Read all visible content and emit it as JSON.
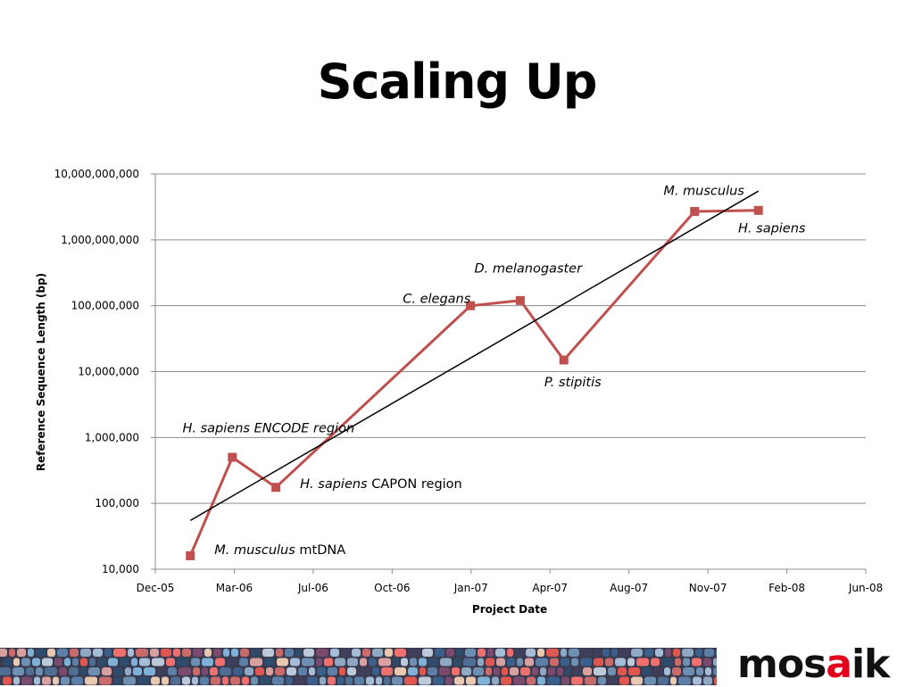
{
  "slide": {
    "title": "Scaling Up",
    "logo": {
      "prefix": "mos",
      "accent": "a",
      "suffix": "ik",
      "accent_color": "#e2001a"
    }
  },
  "chart_data": {
    "type": "line",
    "xlabel": "Project Date",
    "ylabel": "Reference Sequence Length (bp)",
    "yscale": "log",
    "ylim": [
      10000,
      10000000000
    ],
    "xlim": [
      "2005-12-01",
      "2008-06-01"
    ],
    "grid": true,
    "legend": "none",
    "y_ticks": [
      "10,000",
      "100,000",
      "1,000,000",
      "10,000,000",
      "100,000,000",
      "1,000,000,000",
      "10,000,000,000"
    ],
    "x_ticks": [
      "Dec-05",
      "Mar-06",
      "Jul-06",
      "Oct-06",
      "Jan-07",
      "Apr-07",
      "Aug-07",
      "Nov-07",
      "Feb-08",
      "Jun-08"
    ],
    "series": [
      {
        "color": "#c0504d",
        "marker": "square",
        "points": [
          {
            "x": "2006-01-15",
            "y": 16000
          },
          {
            "x": "2006-03-10",
            "y": 500000
          },
          {
            "x": "2006-05-05",
            "y": 175000
          },
          {
            "x": "2007-01-10",
            "y": 100000000
          },
          {
            "x": "2007-03-15",
            "y": 120000000
          },
          {
            "x": "2007-05-10",
            "y": 15000000
          },
          {
            "x": "2007-10-25",
            "y": 2700000000
          },
          {
            "x": "2008-01-15",
            "y": 2800000000
          }
        ]
      }
    ],
    "trendline": {
      "color": "#000000",
      "type": "exponential",
      "points": [
        {
          "x": "2006-01-15",
          "y": 55000
        },
        {
          "x": "2008-01-15",
          "y": 5500000000
        }
      ]
    },
    "annotations": [
      {
        "italic": "M. musculus",
        "plain": " mtDNA",
        "x": "2006-02-15",
        "y": 17000
      },
      {
        "italic": "H. sapiens ENCODE region",
        "plain": "",
        "x": "2006-01-05",
        "y": 1200000
      },
      {
        "italic": "H. sapiens",
        "plain": " CAPON region",
        "x": "2006-06-05",
        "y": 170000
      },
      {
        "italic": "C. elegans",
        "plain": "",
        "x": "2006-10-15",
        "y": 110000000
      },
      {
        "italic": "D. melanogaster",
        "plain": "",
        "x": "2007-01-15",
        "y": 320000000
      },
      {
        "italic": "P. stipitis",
        "plain": "",
        "x": "2007-04-15",
        "y": 6000000
      },
      {
        "italic": "M. musculus",
        "plain": "",
        "x": "2007-09-15",
        "y": 4800000000
      },
      {
        "italic": "H. sapiens",
        "plain": "",
        "x": "2007-12-20",
        "y": 1300000000
      }
    ]
  }
}
